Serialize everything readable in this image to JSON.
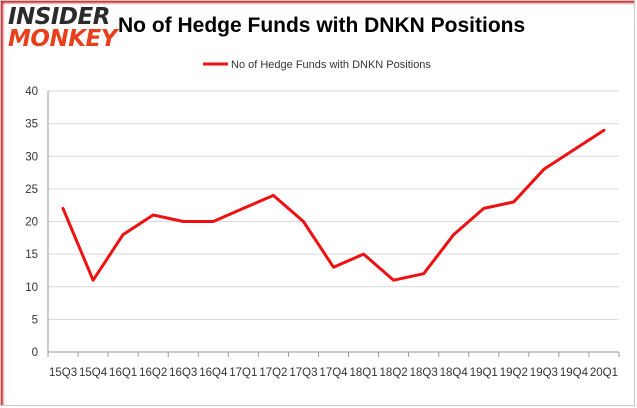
{
  "logo": {
    "line1": "INSIDER",
    "line2": "MONKEY"
  },
  "chart_data": {
    "type": "line",
    "title": "No of Hedge Funds with DNKN Positions",
    "xlabel": "",
    "ylabel": "",
    "categories": [
      "15Q3",
      "15Q4",
      "16Q1",
      "16Q2",
      "16Q3",
      "16Q4",
      "17Q1",
      "17Q2",
      "17Q3",
      "17Q4",
      "18Q1",
      "18Q2",
      "18Q3",
      "18Q4",
      "19Q1",
      "19Q2",
      "19Q3",
      "19Q4",
      "20Q1"
    ],
    "series": [
      {
        "name": "No of Hedge Funds with DNKN Positions",
        "color": "#ee1111",
        "values": [
          22,
          11,
          18,
          21,
          20,
          20,
          22,
          24,
          20,
          13,
          15,
          11,
          12,
          18,
          22,
          23,
          28,
          31,
          34
        ]
      }
    ],
    "ylim": [
      0,
      40
    ],
    "yticks": [
      0,
      5,
      10,
      15,
      20,
      25,
      30,
      35,
      40
    ],
    "grid": true,
    "legend": "top-center"
  }
}
